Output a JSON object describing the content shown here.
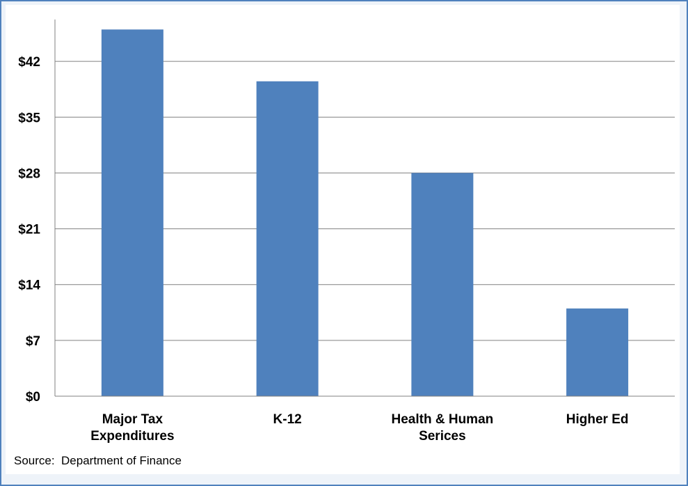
{
  "chart_data": {
    "type": "bar",
    "categories": [
      [
        "Major Tax",
        "Expenditures"
      ],
      [
        "K-12"
      ],
      [
        "Health & Human",
        "Serices"
      ],
      [
        "Higher Ed"
      ]
    ],
    "values": [
      46,
      39.5,
      28,
      11
    ],
    "ylim": [
      0,
      49
    ],
    "yticks": [
      0,
      7,
      14,
      21,
      28,
      35,
      42
    ],
    "ytick_labels": [
      "$0",
      "$7",
      "$14",
      "$21",
      "$28",
      "$35",
      "$42"
    ],
    "grid": true,
    "bar_color": "#4f81bd",
    "grid_color": "#808080"
  },
  "source": "Source:  Department of Finance",
  "colors": {
    "frame_border": "#4f81bd",
    "frame_background": "#eef3f9"
  }
}
